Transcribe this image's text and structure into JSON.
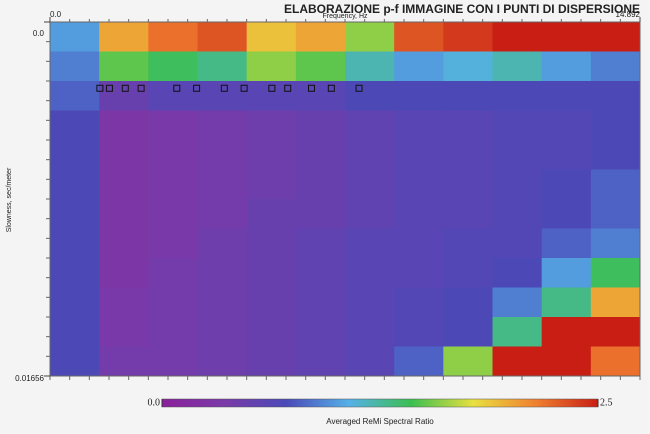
{
  "chart_data": {
    "type": "heatmap",
    "title": "ELABORAZIONE p-f IMMAGINE CON I PUNTI DI DISPERSIONE",
    "x_label": "Frequency, Hz",
    "y_label": "Slowness, sec/meter",
    "colorbar_label": "Averaged ReMi Spectral Ratio",
    "xlim": [
      0,
      14.892
    ],
    "ylim": [
      0,
      0.01656
    ],
    "xticks": [
      {
        "value": 0,
        "label": "0.0"
      },
      14.892
    ],
    "yticks": [
      {
        "value": 0,
        "label": "0.0"
      },
      0.01656
    ],
    "zlim": [
      0,
      2.5
    ],
    "zticks": [
      {
        "value": 0,
        "label": "0.0"
      },
      2.5
    ],
    "colormap": [
      "#8a1f9a",
      "#7a3aa8",
      "#4a4ab8",
      "#55b0e8",
      "#3cbf50",
      "#e8e040",
      "#f08030",
      "#c81e14"
    ],
    "z": [
      [
        1.0,
        2.0,
        2.2,
        2.3,
        1.9,
        2.0,
        1.6,
        2.3,
        2.4,
        2.5,
        2.5,
        2.5
      ],
      [
        0.9,
        1.5,
        1.4,
        1.3,
        1.6,
        1.5,
        1.2,
        1.0,
        1.1,
        1.2,
        1.0,
        0.9
      ],
      [
        0.8,
        0.5,
        0.6,
        0.6,
        0.6,
        0.6,
        0.7,
        0.7,
        0.7,
        0.7,
        0.7,
        0.7
      ],
      [
        0.7,
        0.3,
        0.35,
        0.4,
        0.45,
        0.5,
        0.55,
        0.6,
        0.6,
        0.65,
        0.65,
        0.7
      ],
      [
        0.7,
        0.3,
        0.35,
        0.4,
        0.45,
        0.5,
        0.55,
        0.6,
        0.6,
        0.65,
        0.65,
        0.7
      ],
      [
        0.7,
        0.3,
        0.35,
        0.4,
        0.45,
        0.5,
        0.55,
        0.6,
        0.6,
        0.65,
        0.7,
        0.8
      ],
      [
        0.7,
        0.3,
        0.35,
        0.4,
        0.5,
        0.5,
        0.55,
        0.6,
        0.6,
        0.65,
        0.7,
        0.8
      ],
      [
        0.7,
        0.3,
        0.35,
        0.45,
        0.5,
        0.55,
        0.6,
        0.6,
        0.65,
        0.65,
        0.8,
        0.9
      ],
      [
        0.7,
        0.3,
        0.4,
        0.45,
        0.5,
        0.55,
        0.6,
        0.6,
        0.65,
        0.7,
        1.0,
        1.4
      ],
      [
        0.7,
        0.35,
        0.4,
        0.45,
        0.5,
        0.55,
        0.6,
        0.65,
        0.7,
        0.9,
        1.3,
        2.0
      ],
      [
        0.7,
        0.35,
        0.4,
        0.45,
        0.5,
        0.55,
        0.6,
        0.65,
        0.7,
        1.3,
        2.5,
        2.5
      ],
      [
        0.7,
        0.4,
        0.4,
        0.45,
        0.5,
        0.55,
        0.6,
        0.8,
        1.6,
        2.5,
        2.5,
        2.2
      ]
    ],
    "points": {
      "x": [
        1.26,
        1.5,
        1.9,
        2.3,
        3.2,
        3.7,
        4.4,
        4.9,
        5.6,
        6.0,
        6.6,
        7.1,
        7.8
      ],
      "y": [
        0.0031,
        0.0031,
        0.0031,
        0.0031,
        0.0031,
        0.0031,
        0.0031,
        0.0031,
        0.0031,
        0.0031,
        0.0031,
        0.0031,
        0.0031
      ],
      "color": "#111111"
    }
  }
}
